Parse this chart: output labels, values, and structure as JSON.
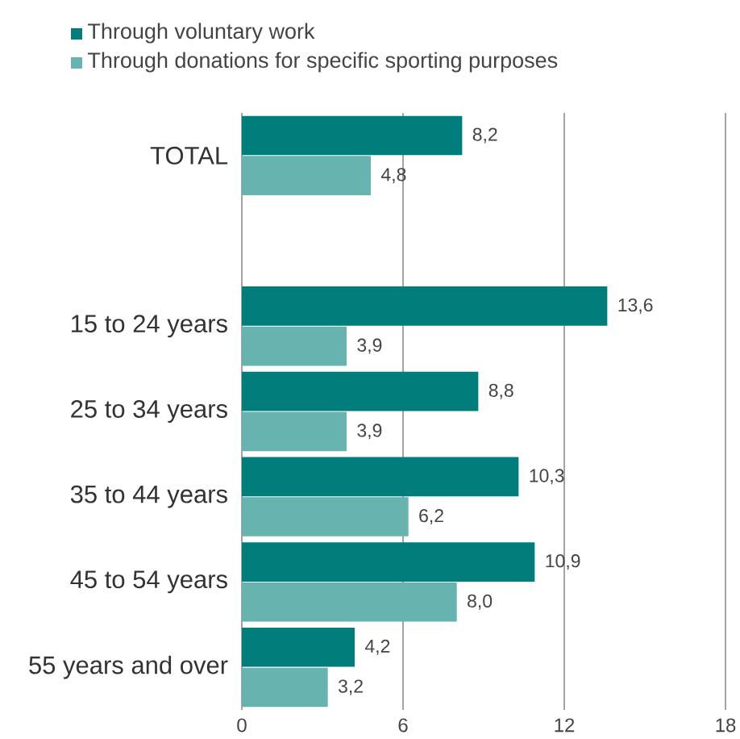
{
  "chart_data": {
    "type": "bar",
    "orientation": "horizontal",
    "categories": [
      "TOTAL",
      null,
      "15 to 24 years",
      "25 to 34 years",
      "35 to 44 years",
      "45 to 54 years",
      "55 years and over"
    ],
    "series": [
      {
        "name": "Through voluntary work",
        "color": "#017e7b",
        "values": [
          8.2,
          null,
          13.6,
          8.8,
          10.3,
          10.9,
          4.2
        ],
        "value_labels": [
          "8,2",
          null,
          "13,6",
          "8,8",
          "10,3",
          "10,9",
          "4,2"
        ]
      },
      {
        "name": "Through donations for specific sporting purposes",
        "color": "#66b3af",
        "values": [
          4.8,
          null,
          3.9,
          3.9,
          6.2,
          8.0,
          3.2
        ],
        "value_labels": [
          "4,8",
          null,
          "3,9",
          "3,9",
          "6,2",
          "8,0",
          "3,2"
        ]
      }
    ],
    "xlim": [
      0,
      18
    ],
    "xticks": [
      0,
      6,
      12,
      18
    ],
    "grid": "x",
    "legend": "top"
  }
}
